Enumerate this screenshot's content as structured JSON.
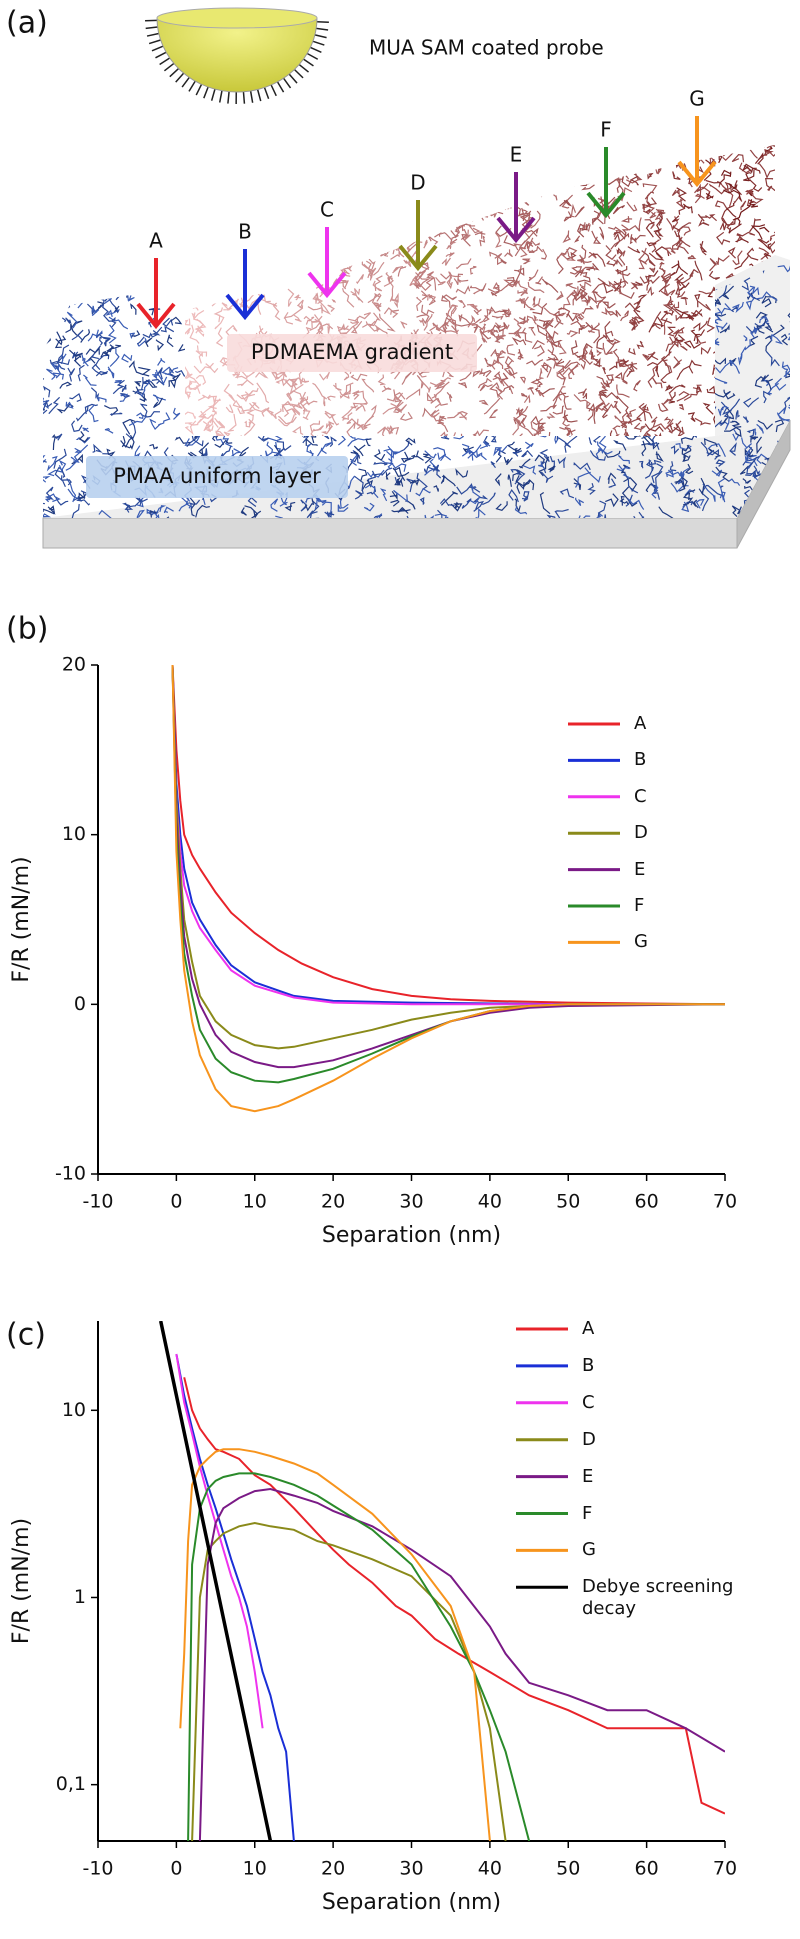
{
  "diagram": {
    "label": "(a)",
    "probe_label": "MUA SAM coated probe",
    "arrows": [
      "A",
      "B",
      "C",
      "D",
      "E",
      "F",
      "G"
    ],
    "gradient_label": "PDMAEMA gradient",
    "layer_label": "PMAA uniform layer"
  },
  "chart_data": [
    {
      "type": "line",
      "label": "(b)",
      "xlabel": "Separation (nm)",
      "ylabel": "F/R (mN/m)",
      "xlim": [
        -10,
        70
      ],
      "ylim": [
        -10,
        20
      ],
      "xticks": [
        -10,
        0,
        10,
        20,
        30,
        40,
        50,
        60,
        70
      ],
      "yticks": [
        -10,
        0,
        10,
        20
      ],
      "series": [
        {
          "name": "A",
          "color": "#e8232a",
          "x": [
            -0.5,
            0,
            0.5,
            1,
            2,
            3,
            5,
            7,
            10,
            13,
            16,
            20,
            25,
            30,
            35,
            40,
            50,
            60,
            70
          ],
          "values": [
            20,
            15,
            12,
            10,
            8.8,
            8,
            6.6,
            5.4,
            4.2,
            3.2,
            2.4,
            1.6,
            0.9,
            0.5,
            0.3,
            0.2,
            0.1,
            0.05,
            0
          ]
        },
        {
          "name": "B",
          "color": "#1a2fd6",
          "x": [
            -0.5,
            0,
            0.5,
            1,
            2,
            3,
            5,
            7,
            10,
            15,
            20,
            30,
            50,
            70
          ],
          "values": [
            20,
            13,
            10,
            8,
            6,
            5,
            3.5,
            2.3,
            1.3,
            0.5,
            0.2,
            0.1,
            0,
            0
          ]
        },
        {
          "name": "C",
          "color": "#ee33ee",
          "x": [
            -0.5,
            0,
            0.5,
            1,
            2,
            3,
            5,
            7,
            10,
            15,
            20,
            30,
            50,
            70
          ],
          "values": [
            20,
            12,
            9,
            7,
            5.5,
            4.5,
            3.2,
            2,
            1.1,
            0.4,
            0.1,
            0,
            0,
            0
          ]
        },
        {
          "name": "D",
          "color": "#8a8a1a",
          "x": [
            -0.5,
            0,
            0.5,
            1,
            2,
            3,
            5,
            7,
            10,
            13,
            15,
            20,
            25,
            30,
            35,
            40,
            45,
            50,
            70
          ],
          "values": [
            20,
            12,
            8,
            5,
            2.5,
            0.5,
            -1,
            -1.8,
            -2.4,
            -2.6,
            -2.5,
            -2,
            -1.5,
            -0.9,
            -0.5,
            -0.2,
            -0.1,
            0,
            0
          ]
        },
        {
          "name": "E",
          "color": "#7a1a86",
          "x": [
            -0.5,
            0,
            0.5,
            1,
            2,
            3,
            5,
            7,
            10,
            13,
            15,
            20,
            25,
            30,
            35,
            40,
            45,
            50,
            70
          ],
          "values": [
            20,
            11,
            7,
            4,
            1.5,
            0,
            -1.8,
            -2.8,
            -3.4,
            -3.7,
            -3.7,
            -3.3,
            -2.6,
            -1.8,
            -1,
            -0.5,
            -0.2,
            -0.1,
            0
          ]
        },
        {
          "name": "F",
          "color": "#2a8a2a",
          "x": [
            -0.5,
            0,
            0.5,
            1,
            2,
            3,
            5,
            7,
            10,
            13,
            15,
            20,
            25,
            30,
            35,
            40,
            45,
            50,
            70
          ],
          "values": [
            20,
            10,
            6,
            3,
            0.5,
            -1.5,
            -3.2,
            -4,
            -4.5,
            -4.6,
            -4.4,
            -3.8,
            -2.9,
            -1.9,
            -1,
            -0.4,
            -0.1,
            0,
            0
          ]
        },
        {
          "name": "G",
          "color": "#f7941d",
          "x": [
            -0.5,
            0,
            0.5,
            1,
            2,
            3,
            5,
            7,
            10,
            13,
            15,
            20,
            25,
            30,
            35,
            40,
            45,
            50,
            70
          ],
          "values": [
            20,
            9,
            5,
            2,
            -1,
            -3,
            -5,
            -6,
            -6.3,
            -6,
            -5.6,
            -4.5,
            -3.2,
            -2,
            -1,
            -0.4,
            -0.1,
            0,
            0
          ]
        }
      ]
    },
    {
      "type": "line",
      "label": "(c)",
      "xlabel": "Separation (nm)",
      "ylabel": "F/R (mN/m)",
      "log_y": true,
      "xlim": [
        -10,
        70
      ],
      "ylim": [
        0.05,
        30
      ],
      "xticks": [
        -10,
        0,
        10,
        20,
        30,
        40,
        50,
        60,
        70
      ],
      "yticks": [
        {
          "value": 0.1,
          "label": "0,1"
        },
        1,
        10
      ],
      "series": [
        {
          "name": "A",
          "color": "#e8232a",
          "x": [
            1,
            2,
            3,
            4,
            5,
            6,
            8,
            10,
            12,
            15,
            18,
            20,
            22,
            25,
            28,
            30,
            33,
            36,
            40,
            45,
            50,
            55,
            60,
            65,
            67,
            70
          ],
          "values": [
            15,
            10,
            8,
            7,
            6.2,
            6,
            5.5,
            4.5,
            4,
            3,
            2.2,
            1.8,
            1.5,
            1.2,
            0.9,
            0.8,
            0.6,
            0.5,
            0.4,
            0.3,
            0.25,
            0.2,
            0.2,
            0.2,
            0.08,
            0.07
          ]
        },
        {
          "name": "B",
          "color": "#1a2fd6",
          "x": [
            0,
            1,
            2,
            3,
            4,
            5,
            6,
            7,
            8,
            9,
            10,
            11,
            12,
            13,
            14,
            15
          ],
          "values": [
            20,
            12,
            8,
            5.5,
            4,
            3,
            2.2,
            1.6,
            1.2,
            0.9,
            0.6,
            0.4,
            0.3,
            0.2,
            0.15,
            0.05
          ]
        },
        {
          "name": "C",
          "color": "#ee33ee",
          "x": [
            0,
            1,
            2,
            3,
            4,
            5,
            6,
            7,
            8,
            9,
            10,
            11
          ],
          "values": [
            20,
            11,
            7.5,
            5,
            3.5,
            2.5,
            1.8,
            1.3,
            1,
            0.7,
            0.4,
            0.2
          ]
        },
        {
          "name": "D",
          "color": "#8a8a1a",
          "x": [
            2,
            3,
            4,
            5,
            6,
            8,
            10,
            12,
            15,
            18,
            20,
            25,
            30,
            35,
            38,
            40,
            42
          ],
          "values": [
            0.05,
            1,
            1.8,
            2,
            2.2,
            2.4,
            2.5,
            2.4,
            2.3,
            2,
            1.9,
            1.6,
            1.3,
            0.8,
            0.4,
            0.2,
            0.05
          ]
        },
        {
          "name": "E",
          "color": "#7a1a86",
          "x": [
            3,
            4,
            5,
            6,
            8,
            10,
            12,
            15,
            18,
            20,
            25,
            30,
            35,
            40,
            42,
            45,
            50,
            55,
            60,
            65,
            70
          ],
          "values": [
            0.05,
            1.5,
            2.5,
            3,
            3.4,
            3.7,
            3.8,
            3.5,
            3.2,
            2.9,
            2.4,
            1.8,
            1.3,
            0.7,
            0.5,
            0.35,
            0.3,
            0.25,
            0.25,
            0.2,
            0.15
          ]
        },
        {
          "name": "F",
          "color": "#2a8a2a",
          "x": [
            1.5,
            2,
            3,
            4,
            5,
            6,
            8,
            10,
            12,
            15,
            18,
            20,
            25,
            30,
            35,
            38,
            40,
            42,
            45
          ],
          "values": [
            0.05,
            1.5,
            3,
            3.8,
            4.2,
            4.4,
            4.6,
            4.6,
            4.4,
            4,
            3.5,
            3.1,
            2.3,
            1.5,
            0.7,
            0.4,
            0.25,
            0.15,
            0.05
          ]
        },
        {
          "name": "G",
          "color": "#f7941d",
          "x": [
            0.5,
            1,
            1.5,
            2,
            3,
            4,
            5,
            6,
            8,
            10,
            12,
            15,
            18,
            20,
            25,
            30,
            35,
            38,
            40
          ],
          "values": [
            0.2,
            0.5,
            2,
            4,
            5,
            5.5,
            6,
            6.2,
            6.2,
            6,
            5.7,
            5.2,
            4.6,
            4,
            2.8,
            1.7,
            0.9,
            0.4,
            0.05
          ]
        },
        {
          "name": "Debye screening decay",
          "color": "#000000",
          "x": [
            -2,
            12
          ],
          "values": [
            30,
            0.05
          ]
        }
      ]
    }
  ]
}
